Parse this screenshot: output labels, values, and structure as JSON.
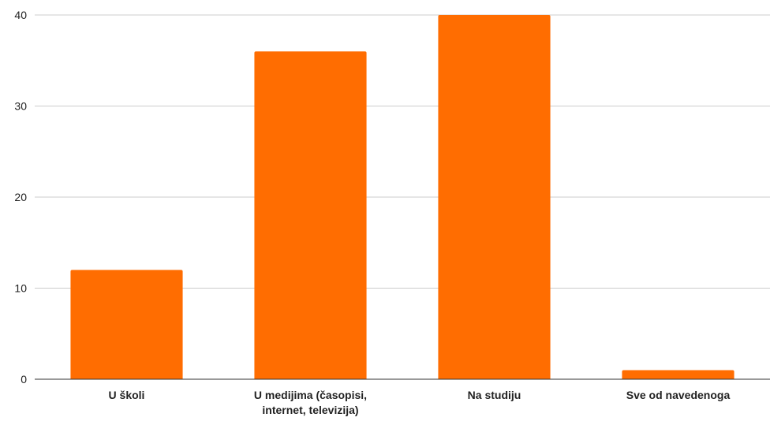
{
  "chart_data": {
    "type": "bar",
    "categories": [
      [
        "U školi"
      ],
      [
        "U medijima (časopisi,",
        "internet, televizija)"
      ],
      [
        "Na studiju"
      ],
      [
        "Sve od navedenoga"
      ]
    ],
    "values": [
      12,
      36,
      40,
      1
    ],
    "yticks": [
      "0",
      "10",
      "20",
      "30",
      "40"
    ],
    "ylim": [
      0,
      40
    ],
    "grid": true,
    "legend": "none",
    "bar_color": "#ff6d01"
  }
}
